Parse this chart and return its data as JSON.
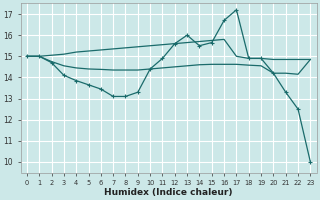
{
  "xlabel": "Humidex (Indice chaleur)",
  "bg_color": "#cce8e8",
  "grid_color": "#ffffff",
  "line_color": "#1a6b6b",
  "xlim": [
    -0.5,
    23.5
  ],
  "ylim": [
    9.5,
    17.5
  ],
  "yticks": [
    10,
    11,
    12,
    13,
    14,
    15,
    16,
    17
  ],
  "xticks": [
    0,
    1,
    2,
    3,
    4,
    5,
    6,
    7,
    8,
    9,
    10,
    11,
    12,
    13,
    14,
    15,
    16,
    17,
    18,
    19,
    20,
    21,
    22,
    23
  ],
  "series": [
    {
      "x": [
        0,
        1,
        2,
        3,
        4,
        5,
        6,
        7,
        8,
        9,
        10,
        11,
        12,
        13,
        14,
        15,
        16,
        17,
        18,
        19,
        20,
        21,
        22,
        23
      ],
      "y": [
        15.0,
        15.0,
        15.05,
        15.1,
        15.2,
        15.25,
        15.3,
        15.35,
        15.4,
        15.45,
        15.5,
        15.55,
        15.6,
        15.65,
        15.7,
        15.75,
        15.8,
        15.0,
        14.9,
        14.9,
        14.85,
        14.85,
        14.85,
        14.85
      ],
      "marker": false,
      "lw": 0.9
    },
    {
      "x": [
        0,
        1,
        2,
        3,
        4,
        5,
        6,
        7,
        8,
        9,
        10,
        11,
        12,
        13,
        14,
        15,
        16,
        17,
        18,
        19,
        20,
        21,
        22,
        23
      ],
      "y": [
        15.0,
        15.0,
        14.75,
        14.55,
        14.45,
        14.4,
        14.38,
        14.35,
        14.35,
        14.35,
        14.4,
        14.45,
        14.5,
        14.55,
        14.6,
        14.62,
        14.62,
        14.62,
        14.58,
        14.55,
        14.2,
        14.2,
        14.15,
        14.85
      ],
      "marker": false,
      "lw": 0.9
    },
    {
      "x": [
        0,
        1,
        2,
        3,
        4,
        5,
        6,
        7,
        8,
        9,
        10,
        11,
        12,
        13,
        14,
        15,
        16,
        17,
        18,
        19,
        20,
        21,
        22,
        23
      ],
      "y": [
        15.0,
        15.0,
        14.7,
        14.1,
        13.85,
        13.65,
        13.45,
        13.1,
        13.1,
        13.3,
        14.4,
        14.9,
        15.6,
        16.0,
        15.5,
        15.65,
        16.7,
        17.2,
        14.9,
        14.9,
        14.2,
        13.3,
        12.5,
        10.0
      ],
      "marker": true,
      "lw": 0.9
    }
  ]
}
